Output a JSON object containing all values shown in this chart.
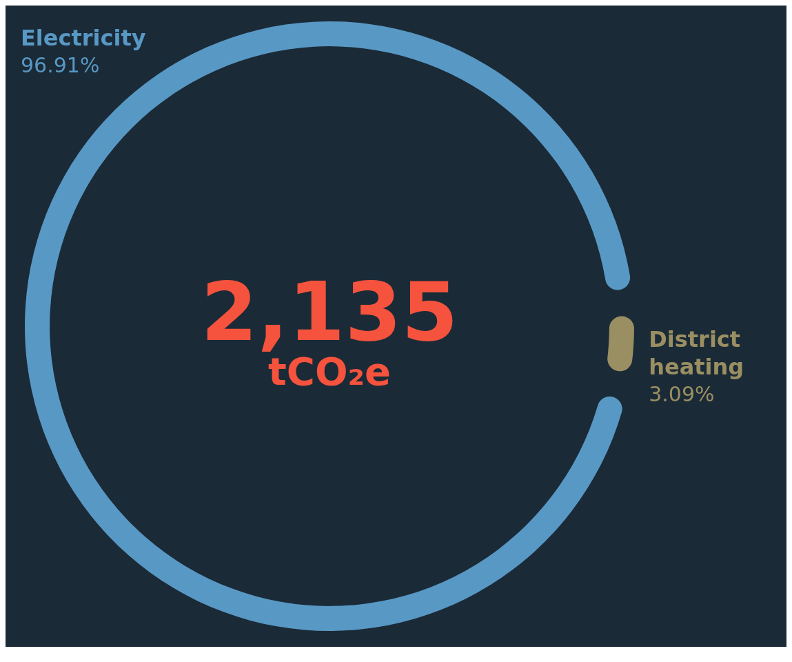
{
  "chart_data": {
    "type": "donut",
    "categories": [
      "Electricity",
      "District heating"
    ],
    "values": [
      96.91,
      3.09
    ],
    "colors": [
      "#5898c4",
      "#9a8f62"
    ],
    "value_labels": [
      "96.91%",
      "3.09%"
    ],
    "annotations": [
      "2,135",
      "tCO₂e"
    ],
    "legend": false
  }
}
